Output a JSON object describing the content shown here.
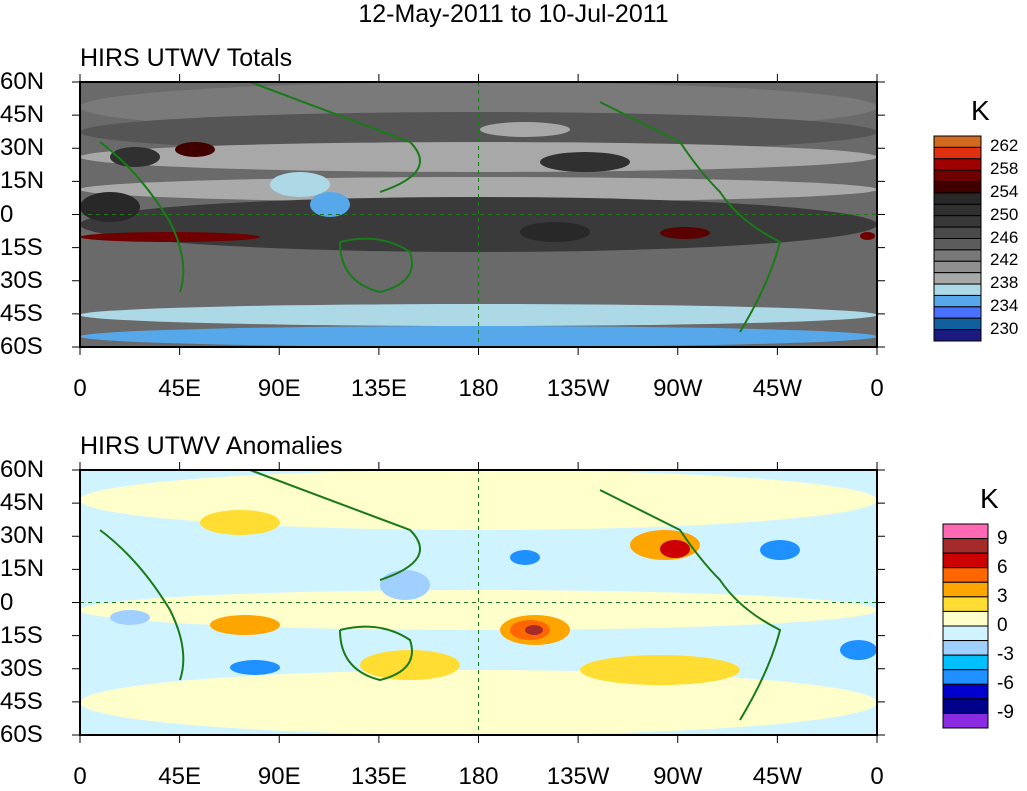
{
  "title": "12-May-2011 to 10-Jul-2011",
  "panels": [
    {
      "title": "HIRS UTWV Totals",
      "unit": "K",
      "levels": [
        "262",
        "258",
        "254",
        "250",
        "246",
        "242",
        "238",
        "234",
        "230"
      ],
      "colors": [
        "#d2691e",
        "#e03010",
        "#a00000",
        "#700000",
        "#400000",
        "#282828",
        "#303030",
        "#383838",
        "#4a4a4a",
        "#5c5c5c",
        "#787878",
        "#909090",
        "#a8a8a8",
        "#add8e6",
        "#56a8ea",
        "#4a70ff",
        "#1060a0",
        "#1a1a80"
      ]
    },
    {
      "title": "HIRS UTWV Anomalies",
      "unit": "K",
      "levels": [
        "9",
        "6",
        "3",
        "0",
        "-3",
        "-6",
        "-9"
      ],
      "colors": [
        "#ff69b4",
        "#a52a2a",
        "#cc0000",
        "#ff6600",
        "#ffa500",
        "#ffdd33",
        "#ffffcc",
        "#d0f4ff",
        "#a0d0ff",
        "#00bfff",
        "#1e90ff",
        "#0000cd",
        "#00008b",
        "#8a2be2"
      ]
    }
  ],
  "y_ticks": [
    "60N",
    "45N",
    "30N",
    "15N",
    "0",
    "15S",
    "30S",
    "45S",
    "60S"
  ],
  "x_ticks": [
    "0",
    "45E",
    "90E",
    "135E",
    "180",
    "135W",
    "90W",
    "45W",
    "0"
  ]
}
